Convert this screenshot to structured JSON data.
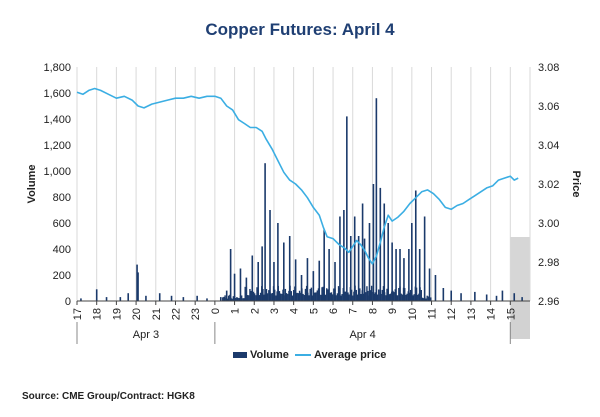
{
  "chart_data": {
    "type": "bar+line",
    "title": "Copper Futures: April 4",
    "ylabel_left": "Volume",
    "ylabel_right": "Price",
    "ylim_left": [
      0,
      1800
    ],
    "ylim_right": [
      2.96,
      3.08
    ],
    "yticks_left": [
      0,
      200,
      400,
      600,
      800,
      1000,
      1200,
      1400,
      1600,
      1800
    ],
    "yticks_left_labels": [
      "0",
      "200",
      "400",
      "600",
      "800",
      "1,000",
      "1,200",
      "1,400",
      "1,600",
      "1,800"
    ],
    "yticks_right": [
      2.96,
      2.98,
      3.0,
      3.02,
      3.04,
      3.06,
      3.08
    ],
    "yticks_right_labels": [
      "2.96",
      "2.98",
      "3.00",
      "3.02",
      "3.04",
      "3.06",
      "3.08"
    ],
    "x_hours": [
      17,
      18,
      19,
      20,
      21,
      22,
      23,
      24,
      25,
      26,
      27,
      28,
      29,
      30,
      31,
      32,
      33,
      34,
      35,
      36,
      37,
      38,
      39,
      40
    ],
    "x_tick_labels": [
      "17",
      "18",
      "19",
      "20",
      "21",
      "22",
      "23",
      "0",
      "1",
      "2",
      "3",
      "4",
      "5",
      "6",
      "7",
      "8",
      "9",
      "10",
      "11",
      "12",
      "13",
      "14",
      "15"
    ],
    "x_range": [
      17,
      40
    ],
    "shaded_x_range": [
      39.0,
      40.0
    ],
    "date_labels": [
      {
        "label": "Apr 3",
        "x_range": [
          17,
          24
        ]
      },
      {
        "label": "Apr 4",
        "x_range": [
          24,
          39
        ]
      }
    ],
    "series": [
      {
        "name": "Volume",
        "type": "bar",
        "color": "#1b3a6b",
        "points": [
          [
            17.2,
            20
          ],
          [
            18.0,
            90
          ],
          [
            18.5,
            30
          ],
          [
            19.2,
            30
          ],
          [
            19.6,
            60
          ],
          [
            20.05,
            280
          ],
          [
            20.1,
            220
          ],
          [
            20.5,
            40
          ],
          [
            21.2,
            60
          ],
          [
            21.8,
            40
          ],
          [
            22.4,
            30
          ],
          [
            23.1,
            40
          ],
          [
            23.6,
            20
          ],
          [
            24.3,
            30
          ],
          [
            24.6,
            80
          ],
          [
            24.8,
            400
          ],
          [
            25.0,
            210
          ],
          [
            25.3,
            250
          ],
          [
            25.6,
            180
          ],
          [
            25.9,
            350
          ],
          [
            26.2,
            300
          ],
          [
            26.4,
            420
          ],
          [
            26.55,
            1060
          ],
          [
            26.8,
            700
          ],
          [
            27.0,
            300
          ],
          [
            27.2,
            600
          ],
          [
            27.5,
            450
          ],
          [
            27.8,
            500
          ],
          [
            28.1,
            320
          ],
          [
            28.4,
            200
          ],
          [
            28.7,
            330
          ],
          [
            29.0,
            230
          ],
          [
            29.3,
            310
          ],
          [
            29.55,
            550
          ],
          [
            29.8,
            400
          ],
          [
            30.1,
            300
          ],
          [
            30.35,
            650
          ],
          [
            30.55,
            700
          ],
          [
            30.7,
            1420
          ],
          [
            30.9,
            500
          ],
          [
            31.1,
            650
          ],
          [
            31.3,
            500
          ],
          [
            31.5,
            750
          ],
          [
            31.6,
            480
          ],
          [
            31.85,
            600
          ],
          [
            32.05,
            900
          ],
          [
            32.2,
            1560
          ],
          [
            32.4,
            870
          ],
          [
            32.6,
            750
          ],
          [
            32.8,
            600
          ],
          [
            33.0,
            450
          ],
          [
            33.2,
            400
          ],
          [
            33.4,
            400
          ],
          [
            33.6,
            330
          ],
          [
            33.85,
            400
          ],
          [
            34.0,
            600
          ],
          [
            34.2,
            850
          ],
          [
            34.4,
            400
          ],
          [
            34.65,
            650
          ],
          [
            34.9,
            250
          ],
          [
            35.2,
            200
          ],
          [
            35.6,
            100
          ],
          [
            36.0,
            80
          ],
          [
            36.5,
            60
          ],
          [
            37.2,
            70
          ],
          [
            37.8,
            50
          ],
          [
            38.3,
            40
          ],
          [
            38.6,
            80
          ],
          [
            39.2,
            60
          ],
          [
            39.6,
            30
          ]
        ]
      },
      {
        "name": "Average price",
        "type": "line",
        "color": "#3baee3",
        "points": [
          [
            17.0,
            3.067
          ],
          [
            17.3,
            3.066
          ],
          [
            17.6,
            3.068
          ],
          [
            17.9,
            3.069
          ],
          [
            18.2,
            3.068
          ],
          [
            18.6,
            3.066
          ],
          [
            19.0,
            3.064
          ],
          [
            19.4,
            3.065
          ],
          [
            19.8,
            3.063
          ],
          [
            20.1,
            3.06
          ],
          [
            20.4,
            3.059
          ],
          [
            20.8,
            3.061
          ],
          [
            21.2,
            3.062
          ],
          [
            21.6,
            3.063
          ],
          [
            22.0,
            3.064
          ],
          [
            22.4,
            3.064
          ],
          [
            22.8,
            3.065
          ],
          [
            23.2,
            3.064
          ],
          [
            23.6,
            3.065
          ],
          [
            24.0,
            3.065
          ],
          [
            24.3,
            3.064
          ],
          [
            24.6,
            3.06
          ],
          [
            24.9,
            3.058
          ],
          [
            25.2,
            3.053
          ],
          [
            25.5,
            3.051
          ],
          [
            25.8,
            3.049
          ],
          [
            26.1,
            3.049
          ],
          [
            26.4,
            3.047
          ],
          [
            26.6,
            3.043
          ],
          [
            26.9,
            3.038
          ],
          [
            27.2,
            3.032
          ],
          [
            27.5,
            3.026
          ],
          [
            27.8,
            3.022
          ],
          [
            28.1,
            3.02
          ],
          [
            28.4,
            3.017
          ],
          [
            28.7,
            3.013
          ],
          [
            29.0,
            3.008
          ],
          [
            29.3,
            3.004
          ],
          [
            29.5,
            2.998
          ],
          [
            29.7,
            2.993
          ],
          [
            30.0,
            2.992
          ],
          [
            30.3,
            2.989
          ],
          [
            30.6,
            2.987
          ],
          [
            30.8,
            2.985
          ],
          [
            31.0,
            2.988
          ],
          [
            31.2,
            2.991
          ],
          [
            31.4,
            2.989
          ],
          [
            31.6,
            2.986
          ],
          [
            31.8,
            2.982
          ],
          [
            32.0,
            2.979
          ],
          [
            32.2,
            2.983
          ],
          [
            32.4,
            2.99
          ],
          [
            32.6,
            2.998
          ],
          [
            32.8,
            3.004
          ],
          [
            33.0,
            3.001
          ],
          [
            33.3,
            3.003
          ],
          [
            33.6,
            3.006
          ],
          [
            33.9,
            3.01
          ],
          [
            34.2,
            3.013
          ],
          [
            34.5,
            3.016
          ],
          [
            34.8,
            3.017
          ],
          [
            35.1,
            3.015
          ],
          [
            35.4,
            3.012
          ],
          [
            35.7,
            3.008
          ],
          [
            36.0,
            3.007
          ],
          [
            36.3,
            3.009
          ],
          [
            36.6,
            3.01
          ],
          [
            36.9,
            3.012
          ],
          [
            37.2,
            3.014
          ],
          [
            37.5,
            3.016
          ],
          [
            37.8,
            3.018
          ],
          [
            38.1,
            3.019
          ],
          [
            38.4,
            3.022
          ],
          [
            38.7,
            3.023
          ],
          [
            39.0,
            3.024
          ],
          [
            39.2,
            3.022
          ],
          [
            39.4,
            3.023
          ]
        ]
      }
    ],
    "legend": {
      "position": "bottom",
      "items": [
        "Volume",
        "Average price"
      ]
    },
    "grid": {
      "horizontal": false,
      "vertical": true
    }
  },
  "source": "Source: CME Group/Contract: HGK8",
  "colors": {
    "title": "#1f3f73",
    "volume": "#1b3a6b",
    "price": "#3baee3",
    "grid": "#d9d9d9",
    "shade": "#d2d2d2"
  }
}
